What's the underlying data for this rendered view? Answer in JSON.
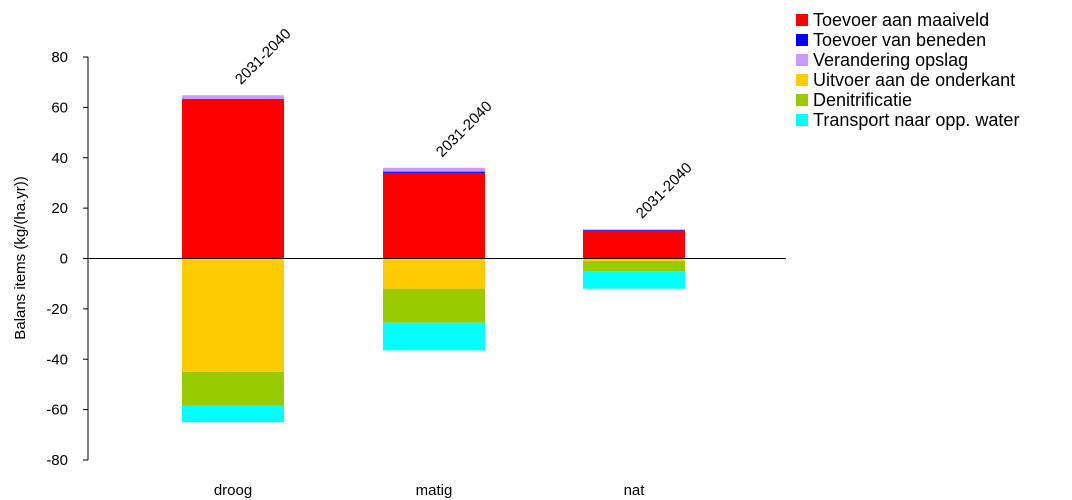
{
  "chart_data": {
    "type": "bar",
    "stacked": true,
    "categories": [
      "droog",
      "matig",
      "nat"
    ],
    "period_labels": [
      "2031-2040",
      "2031-2040",
      "2031-2040"
    ],
    "ylabel": "Balans items (kg/(ha.yr))",
    "xlabel": "",
    "ylim": [
      -80,
      80
    ],
    "yticks": [
      80,
      60,
      40,
      20,
      0,
      -20,
      -40,
      -60,
      -80
    ],
    "legend_position": "top-right",
    "series": [
      {
        "name": "Toevoer aan maaiveld",
        "color": "#ff0000",
        "values": [
          63,
          34,
          11
        ]
      },
      {
        "name": "Toevoer van beneden",
        "color": "#0000ff",
        "values": [
          0.3,
          0.5,
          0.3
        ]
      },
      {
        "name": "Verandering opslag",
        "color": "#cc99ff",
        "values": [
          1.5,
          1.5,
          0.3
        ]
      },
      {
        "name": "Uitvoer aan de onderkant",
        "color": "#ffcc00",
        "values": [
          -45,
          -12,
          -1
        ]
      },
      {
        "name": "Denitrificatie",
        "color": "#99cc00",
        "values": [
          -13.5,
          -13.5,
          -4
        ]
      },
      {
        "name": "Transport naar opp. water",
        "color": "#00ffff",
        "values": [
          -6.5,
          -11,
          -7
        ]
      }
    ]
  }
}
